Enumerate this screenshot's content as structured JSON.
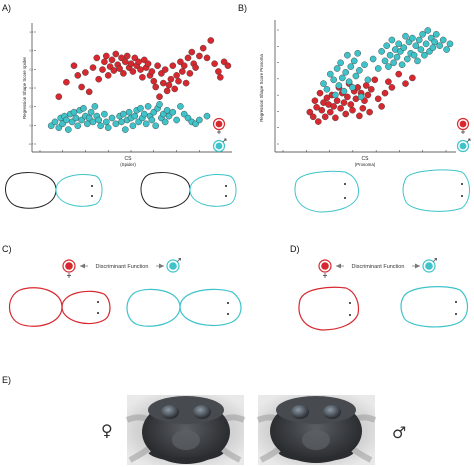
{
  "figure": {
    "panel_labels": {
      "a": "A)",
      "b": "B)",
      "c": "C)",
      "d": "D)",
      "e": "E)"
    },
    "colors": {
      "female": "#d7282f",
      "male": "#3fc3c9",
      "outline_black": "#222222",
      "axis": "#333333"
    },
    "discriminant_label": "Discriminant Function",
    "symbols": {
      "female": "♀",
      "male": "♂"
    },
    "photo_panel": {
      "left_symbol": "♀",
      "right_symbol": "♂"
    }
  },
  "chart_data": [
    {
      "type": "scatter",
      "panel": "A",
      "xlabel": "CS",
      "xlabel_sub": "(Spider)",
      "ylabel": "Regression Shape Score spider",
      "xticks": [
        "",
        "",
        "",
        "",
        "",
        "",
        "",
        "",
        ""
      ],
      "yticks": [
        "1.0",
        "0.8",
        "0.6",
        "0.4",
        "0.2",
        "0.0",
        "-0.2"
      ],
      "xlim": [
        0,
        100
      ],
      "ylim": [
        -0.25,
        1.05
      ],
      "series": [
        {
          "sex": "female",
          "color": "#d7282f",
          "points": [
            [
              12,
              0.3
            ],
            [
              16,
              0.45
            ],
            [
              20,
              0.62
            ],
            [
              22,
              0.52
            ],
            [
              24,
              0.4
            ],
            [
              26,
              0.55
            ],
            [
              28,
              0.35
            ],
            [
              30,
              0.6
            ],
            [
              32,
              0.7
            ],
            [
              33,
              0.48
            ],
            [
              35,
              0.58
            ],
            [
              36,
              0.66
            ],
            [
              37,
              0.72
            ],
            [
              38,
              0.52
            ],
            [
              39,
              0.61
            ],
            [
              40,
              0.68
            ],
            [
              41,
              0.57
            ],
            [
              42,
              0.74
            ],
            [
              43,
              0.63
            ],
            [
              44,
              0.59
            ],
            [
              45,
              0.7
            ],
            [
              46,
              0.54
            ],
            [
              47,
              0.66
            ],
            [
              48,
              0.72
            ],
            [
              49,
              0.6
            ],
            [
              50,
              0.64
            ],
            [
              51,
              0.56
            ],
            [
              52,
              0.7
            ],
            [
              53,
              0.62
            ],
            [
              54,
              0.66
            ],
            [
              55,
              0.58
            ],
            [
              56,
              0.5
            ],
            [
              57,
              0.68
            ],
            [
              58,
              0.6
            ],
            [
              59,
              0.64
            ],
            [
              60,
              0.52
            ],
            [
              61,
              0.56
            ],
            [
              62,
              0.46
            ],
            [
              63,
              0.4
            ],
            [
              64,
              0.62
            ],
            [
              65,
              0.3
            ],
            [
              66,
              0.54
            ],
            [
              67,
              0.44
            ],
            [
              68,
              0.58
            ],
            [
              69,
              0.36
            ],
            [
              70,
              0.42
            ],
            [
              71,
              0.48
            ],
            [
              72,
              0.62
            ],
            [
              73,
              0.38
            ],
            [
              74,
              0.52
            ],
            [
              75,
              0.46
            ],
            [
              76,
              0.66
            ],
            [
              77,
              0.56
            ],
            [
              78,
              0.62
            ],
            [
              79,
              0.44
            ],
            [
              80,
              0.7
            ],
            [
              81,
              0.54
            ],
            [
              82,
              0.76
            ],
            [
              83,
              0.64
            ],
            [
              84,
              0.6
            ],
            [
              86,
              0.72
            ],
            [
              88,
              0.8
            ],
            [
              90,
              0.7
            ],
            [
              92,
              0.88
            ],
            [
              94,
              0.64
            ],
            [
              96,
              0.56
            ],
            [
              97,
              0.5
            ],
            [
              99,
              0.66
            ],
            [
              101,
              0.62
            ]
          ]
        },
        {
          "sex": "male",
          "color": "#3fc3c9",
          "points": [
            [
              8,
              0.0
            ],
            [
              10,
              0.04
            ],
            [
              12,
              -0.02
            ],
            [
              13,
              0.08
            ],
            [
              14,
              0.02
            ],
            [
              15,
              0.1
            ],
            [
              16,
              0.06
            ],
            [
              17,
              -0.04
            ],
            [
              18,
              0.12
            ],
            [
              19,
              0.04
            ],
            [
              20,
              0.14
            ],
            [
              21,
              0.08
            ],
            [
              22,
              0.0
            ],
            [
              23,
              0.16
            ],
            [
              24,
              0.06
            ],
            [
              25,
              0.18
            ],
            [
              26,
              0.1
            ],
            [
              27,
              0.02
            ],
            [
              28,
              0.08
            ],
            [
              29,
              0.14
            ],
            [
              30,
              0.04
            ],
            [
              31,
              0.2
            ],
            [
              32,
              0.1
            ],
            [
              33,
              0.06
            ],
            [
              34,
              0.0
            ],
            [
              36,
              0.12
            ],
            [
              37,
              0.04
            ],
            [
              38,
              -0.02
            ],
            [
              40,
              0.08
            ],
            [
              42,
              0.02
            ],
            [
              44,
              0.1
            ],
            [
              45,
              0.04
            ],
            [
              46,
              0.12
            ],
            [
              47,
              -0.04
            ],
            [
              48,
              0.06
            ],
            [
              49,
              0.14
            ],
            [
              50,
              0.08
            ],
            [
              51,
              0.0
            ],
            [
              52,
              0.1
            ],
            [
              53,
              0.16
            ],
            [
              54,
              0.04
            ],
            [
              55,
              0.18
            ],
            [
              56,
              0.08
            ],
            [
              57,
              0.12
            ],
            [
              58,
              0.02
            ],
            [
              59,
              0.2
            ],
            [
              60,
              0.1
            ],
            [
              61,
              0.06
            ],
            [
              62,
              0.14
            ],
            [
              63,
              0.0
            ],
            [
              64,
              0.18
            ],
            [
              65,
              0.22
            ],
            [
              66,
              0.08
            ],
            [
              67,
              0.12
            ],
            [
              68,
              0.04
            ],
            [
              69,
              0.16
            ],
            [
              70,
              0.1
            ],
            [
              72,
              0.14
            ],
            [
              74,
              0.06
            ],
            [
              76,
              0.2
            ],
            [
              78,
              0.12
            ],
            [
              80,
              0.08
            ],
            [
              82,
              0.04
            ],
            [
              84,
              0.02
            ],
            [
              86,
              0.06
            ],
            [
              90,
              0.1
            ]
          ]
        }
      ],
      "legend_order": [
        "female",
        "male"
      ]
    },
    {
      "type": "scatter",
      "panel": "B",
      "xlabel": "CS",
      "xlabel_sub": "(Prosoma)",
      "ylabel": "Regression Shape Score Prosoma",
      "xticks": [
        "",
        "",
        "",
        "",
        "",
        "",
        "",
        ""
      ],
      "yticks": [
        "",
        "",
        "",
        "",
        "",
        "",
        "",
        ""
      ],
      "xlim": [
        0,
        100
      ],
      "ylim": [
        -0.3,
        1.05
      ],
      "series": [
        {
          "sex": "female",
          "color": "#d7282f",
          "points": [
            [
              18,
              0.1
            ],
            [
              20,
              0.05
            ],
            [
              21,
              0.22
            ],
            [
              22,
              0.15
            ],
            [
              23,
              0.0
            ],
            [
              24,
              0.3
            ],
            [
              25,
              0.12
            ],
            [
              26,
              0.2
            ],
            [
              27,
              0.05
            ],
            [
              28,
              0.25
            ],
            [
              29,
              0.18
            ],
            [
              30,
              0.1
            ],
            [
              31,
              0.28
            ],
            [
              32,
              0.16
            ],
            [
              33,
              0.04
            ],
            [
              34,
              0.22
            ],
            [
              35,
              0.36
            ],
            [
              36,
              0.14
            ],
            [
              37,
              0.3
            ],
            [
              38,
              0.2
            ],
            [
              39,
              0.08
            ],
            [
              40,
              0.26
            ],
            [
              41,
              0.4
            ],
            [
              42,
              0.18
            ],
            [
              43,
              0.12
            ],
            [
              44,
              0.32
            ],
            [
              45,
              0.24
            ],
            [
              46,
              0.36
            ],
            [
              47,
              0.06
            ],
            [
              48,
              0.3
            ],
            [
              49,
              0.14
            ],
            [
              50,
              0.22
            ],
            [
              51,
              0.38
            ],
            [
              52,
              0.28
            ],
            [
              53,
              0.1
            ],
            [
              54,
              0.34
            ],
            [
              56,
              0.44
            ],
            [
              58,
              0.24
            ],
            [
              60,
              0.16
            ],
            [
              62,
              0.3
            ],
            [
              64,
              0.42
            ],
            [
              66,
              0.36
            ],
            [
              70,
              0.5
            ],
            [
              74,
              0.4
            ],
            [
              78,
              0.46
            ]
          ]
        },
        {
          "sex": "male",
          "color": "#3fc3c9",
          "points": [
            [
              26,
              0.4
            ],
            [
              28,
              0.34
            ],
            [
              30,
              0.5
            ],
            [
              32,
              0.44
            ],
            [
              33,
              0.28
            ],
            [
              34,
              0.56
            ],
            [
              35,
              0.38
            ],
            [
              36,
              0.62
            ],
            [
              37,
              0.46
            ],
            [
              38,
              0.32
            ],
            [
              39,
              0.52
            ],
            [
              40,
              0.7
            ],
            [
              41,
              0.42
            ],
            [
              42,
              0.58
            ],
            [
              43,
              0.36
            ],
            [
              44,
              0.64
            ],
            [
              45,
              0.48
            ],
            [
              46,
              0.72
            ],
            [
              47,
              0.54
            ],
            [
              48,
              0.26
            ],
            [
              50,
              0.6
            ],
            [
              52,
              0.44
            ],
            [
              55,
              0.66
            ],
            [
              58,
              0.56
            ],
            [
              60,
              0.74
            ],
            [
              62,
              0.64
            ],
            [
              63,
              0.8
            ],
            [
              64,
              0.58
            ],
            [
              65,
              0.7
            ],
            [
              66,
              0.86
            ],
            [
              67,
              0.62
            ],
            [
              68,
              0.76
            ],
            [
              69,
              0.68
            ],
            [
              70,
              0.82
            ],
            [
              71,
              0.74
            ],
            [
              72,
              0.6
            ],
            [
              73,
              0.78
            ],
            [
              74,
              0.9
            ],
            [
              75,
              0.66
            ],
            [
              76,
              0.84
            ],
            [
              77,
              0.72
            ],
            [
              78,
              0.88
            ],
            [
              79,
              0.7
            ],
            [
              80,
              0.8
            ],
            [
              81,
              0.64
            ],
            [
              82,
              0.86
            ],
            [
              83,
              0.76
            ],
            [
              84,
              0.92
            ],
            [
              85,
              0.7
            ],
            [
              86,
              0.82
            ],
            [
              87,
              0.96
            ],
            [
              88,
              0.74
            ],
            [
              89,
              0.88
            ],
            [
              90,
              0.78
            ],
            [
              91,
              0.84
            ],
            [
              92,
              0.92
            ],
            [
              94,
              0.8
            ],
            [
              96,
              0.86
            ],
            [
              98,
              0.76
            ],
            [
              100,
              0.82
            ]
          ]
        }
      ],
      "legend_order": [
        "female",
        "male"
      ]
    }
  ]
}
